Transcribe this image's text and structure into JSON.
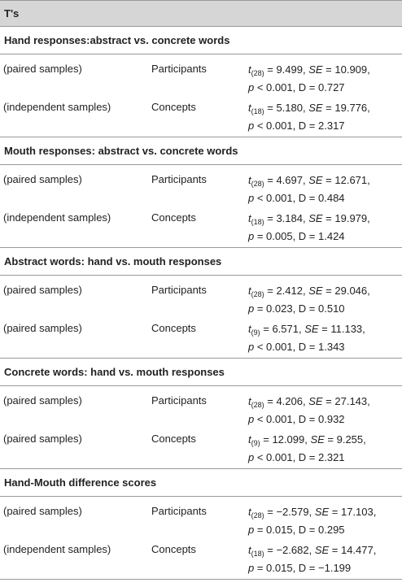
{
  "header": {
    "title": "T's"
  },
  "sections": [
    {
      "title": "Hand responses:abstract vs. concrete words",
      "rows": [
        {
          "design": "(paired samples)",
          "group": "Participants",
          "stat": [
            [
              {
                "text": "t",
                "style": "italic"
              },
              {
                "text": "(28)",
                "style": "sub"
              },
              " = 9.499, ",
              {
                "text": "SE",
                "style": "italic"
              },
              " = 10.909,"
            ],
            [
              {
                "text": "p",
                "style": "italic"
              },
              " < 0.001, D = 0.727"
            ]
          ]
        },
        {
          "design": "(independent samples)",
          "group": "Concepts",
          "stat": [
            [
              {
                "text": "t",
                "style": "italic"
              },
              {
                "text": "(18)",
                "style": "sub"
              },
              " = 5.180, ",
              {
                "text": "SE",
                "style": "italic"
              },
              " = 19.776,"
            ],
            [
              {
                "text": "p",
                "style": "italic"
              },
              " < 0.001, D = 2.317"
            ]
          ]
        }
      ]
    },
    {
      "title": "Mouth responses: abstract vs. concrete words",
      "rows": [
        {
          "design": "(paired samples)",
          "group": "Participants",
          "stat": [
            [
              {
                "text": "t",
                "style": "italic"
              },
              {
                "text": "(28)",
                "style": "sub"
              },
              " = 4.697, ",
              {
                "text": "SE",
                "style": "italic"
              },
              " = 12.671,"
            ],
            [
              {
                "text": "p",
                "style": "italic"
              },
              " < 0.001, D = 0.484"
            ]
          ]
        },
        {
          "design": "(independent samples)",
          "group": "Concepts",
          "stat": [
            [
              {
                "text": "t",
                "style": "italic"
              },
              {
                "text": "(18)",
                "style": "sub"
              },
              " = 3.184, ",
              {
                "text": "SE",
                "style": "italic"
              },
              " = 19.979,"
            ],
            [
              {
                "text": "p",
                "style": "italic"
              },
              " = 0.005, D = 1.424"
            ]
          ]
        }
      ]
    },
    {
      "title": "Abstract words: hand vs. mouth responses",
      "rows": [
        {
          "design": "(paired samples)",
          "group": "Participants",
          "stat": [
            [
              {
                "text": "t",
                "style": "italic"
              },
              {
                "text": "(28)",
                "style": "sub"
              },
              " = 2.412, ",
              {
                "text": "SE",
                "style": "italic"
              },
              " = 29.046,"
            ],
            [
              {
                "text": "p",
                "style": "italic"
              },
              " = 0.023, D = 0.510"
            ]
          ]
        },
        {
          "design": "(paired samples)",
          "group": "Concepts",
          "stat": [
            [
              {
                "text": "t",
                "style": "italic"
              },
              {
                "text": "(9)",
                "style": "sub"
              },
              " = 6.571, ",
              {
                "text": "SE",
                "style": "italic"
              },
              " = 11.133,"
            ],
            [
              {
                "text": "p",
                "style": "italic"
              },
              " < 0.001, D = 1.343"
            ]
          ]
        }
      ]
    },
    {
      "title": "Concrete words: hand vs. mouth responses",
      "rows": [
        {
          "design": "(paired samples)",
          "group": "Participants",
          "stat": [
            [
              {
                "text": "t",
                "style": "italic"
              },
              {
                "text": "(28)",
                "style": "sub"
              },
              " = 4.206, ",
              {
                "text": "SE",
                "style": "italic"
              },
              " = 27.143,"
            ],
            [
              {
                "text": "p",
                "style": "italic"
              },
              " < 0.001, D = 0.932"
            ]
          ]
        },
        {
          "design": "(paired samples)",
          "group": "Concepts",
          "stat": [
            [
              {
                "text": "t",
                "style": "italic"
              },
              {
                "text": "(9)",
                "style": "sub"
              },
              " = 12.099, ",
              {
                "text": "SE",
                "style": "italic"
              },
              " = 9.255,"
            ],
            [
              {
                "text": "p",
                "style": "italic"
              },
              " < 0.001, D = 2.321"
            ]
          ]
        }
      ]
    },
    {
      "title": "Hand-Mouth difference scores",
      "rows": [
        {
          "design": "(paired samples)",
          "group": "Participants",
          "stat": [
            [
              {
                "text": "t",
                "style": "italic"
              },
              {
                "text": "(28)",
                "style": "sub"
              },
              " = −2.579, ",
              {
                "text": "SE",
                "style": "italic"
              },
              " = 17.103,"
            ],
            [
              {
                "text": "p",
                "style": "italic"
              },
              " = 0.015, D = 0.295"
            ]
          ]
        },
        {
          "design": "(independent samples)",
          "group": "Concepts",
          "stat": [
            [
              {
                "text": "t",
                "style": "italic"
              },
              {
                "text": "(18)",
                "style": "sub"
              },
              " = −2.682, ",
              {
                "text": "SE",
                "style": "italic"
              },
              " = 14.477,"
            ],
            [
              {
                "text": "p",
                "style": "italic"
              },
              " = 0.015, D = −1.199"
            ]
          ]
        }
      ]
    }
  ]
}
